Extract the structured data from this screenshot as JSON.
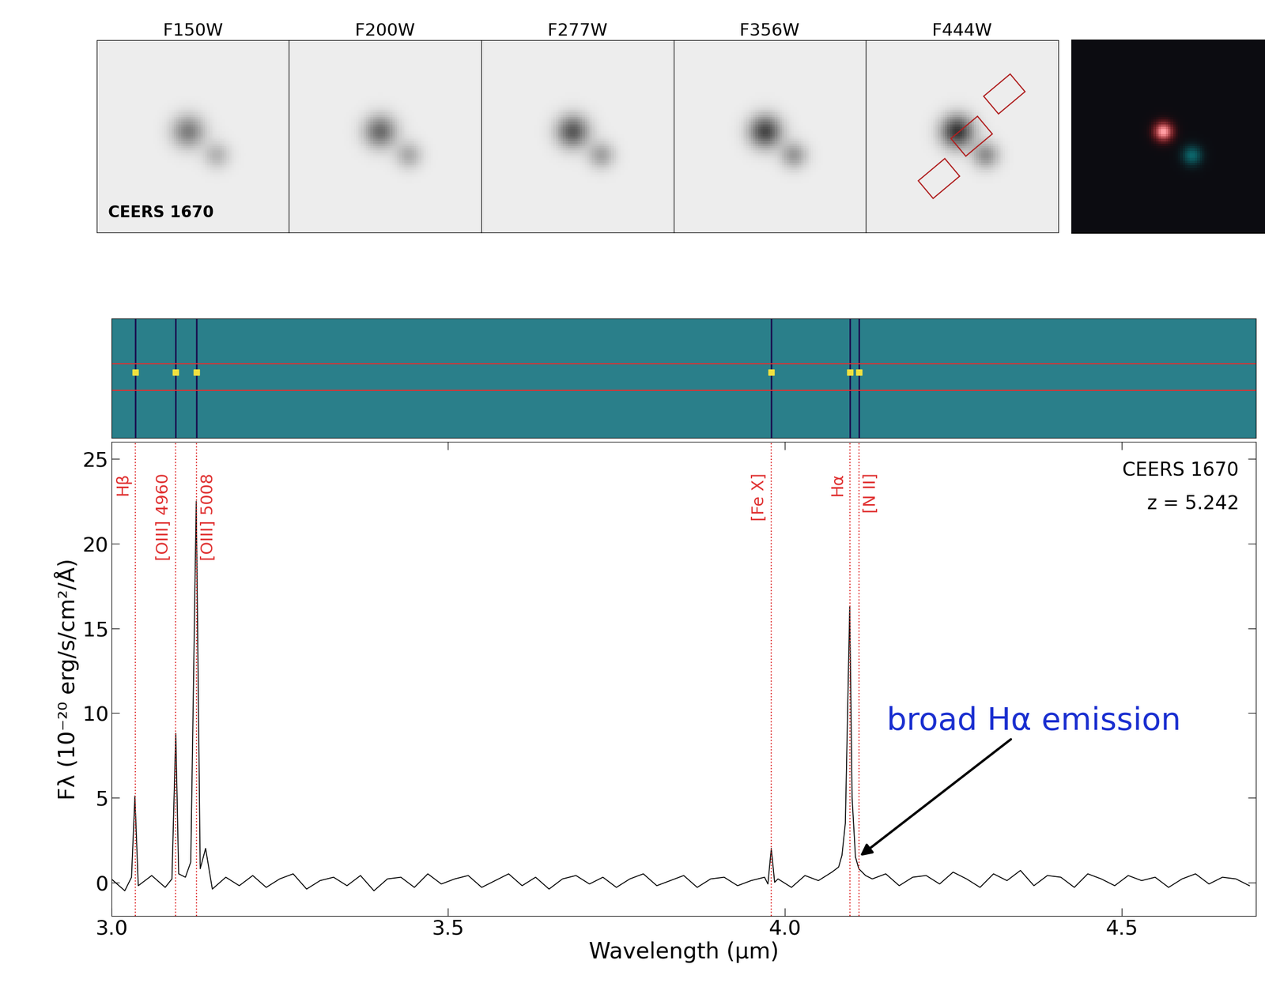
{
  "images": {
    "filters": [
      "F150W",
      "F200W",
      "F277W",
      "F356W",
      "F444W"
    ],
    "label": "CEERS 1670"
  },
  "chart_data": {
    "type": "line",
    "object": "CEERS 1670",
    "redshift_label": "z = 5.242",
    "x_label": "Wavelength (μm)",
    "y_label": "Fλ (10⁻²⁰ erg/s/cm²/Å)",
    "annotation": {
      "text": "broad Hα emission",
      "x": 4.11,
      "y": 1.5
    },
    "xlim": [
      3.0,
      4.7
    ],
    "xticks": [
      {
        "value": 3.0,
        "label": "3.0"
      },
      {
        "value": 3.5,
        "label": "3.5"
      },
      {
        "value": 4.0,
        "label": "4.0"
      },
      {
        "value": 4.5,
        "label": "4.5"
      }
    ],
    "ylim": [
      -2,
      26
    ],
    "yticks": [
      0,
      5,
      10,
      15,
      20,
      25
    ],
    "lines": [
      {
        "name": "Hβ",
        "x": 3.0353,
        "side": "left"
      },
      {
        "name": "[OIII] 4960",
        "x": 3.0957,
        "side": "left"
      },
      {
        "name": "[OIII] 5008",
        "x": 3.1261,
        "side": "right"
      },
      {
        "name": "[Fe X]",
        "x": 3.98,
        "side": "left"
      },
      {
        "name": "Hα",
        "x": 4.0965,
        "side": "left"
      },
      {
        "name": "[N II]",
        "x": 4.11,
        "side": "right"
      }
    ],
    "color": "#000000",
    "line_color": "#e03030",
    "x": [
      3.0,
      3.02,
      3.03,
      3.035,
      3.04,
      3.06,
      3.08,
      3.09,
      3.0957,
      3.1,
      3.11,
      3.118,
      3.1261,
      3.132,
      3.14,
      3.15,
      3.17,
      3.19,
      3.21,
      3.23,
      3.25,
      3.27,
      3.29,
      3.31,
      3.33,
      3.35,
      3.37,
      3.39,
      3.41,
      3.43,
      3.45,
      3.47,
      3.49,
      3.51,
      3.53,
      3.55,
      3.57,
      3.59,
      3.61,
      3.63,
      3.65,
      3.67,
      3.69,
      3.71,
      3.73,
      3.75,
      3.77,
      3.79,
      3.81,
      3.83,
      3.85,
      3.87,
      3.89,
      3.91,
      3.93,
      3.95,
      3.97,
      3.975,
      3.98,
      3.985,
      3.99,
      4.01,
      4.03,
      4.05,
      4.07,
      4.08,
      4.085,
      4.09,
      4.0965,
      4.1,
      4.105,
      4.11,
      4.12,
      4.13,
      4.15,
      4.17,
      4.19,
      4.21,
      4.23,
      4.25,
      4.27,
      4.29,
      4.31,
      4.33,
      4.35,
      4.37,
      4.39,
      4.41,
      4.43,
      4.45,
      4.47,
      4.49,
      4.51,
      4.53,
      4.55,
      4.57,
      4.59,
      4.61,
      4.63,
      4.65,
      4.67,
      4.69
    ],
    "values": [
      0.2,
      -0.5,
      0.3,
      5.1,
      -0.2,
      0.4,
      -0.3,
      0.2,
      8.8,
      0.5,
      0.3,
      1.2,
      22.5,
      0.8,
      2.0,
      -0.4,
      0.3,
      -0.2,
      0.4,
      -0.3,
      0.2,
      0.5,
      -0.4,
      0.1,
      0.3,
      -0.2,
      0.4,
      -0.5,
      0.2,
      0.3,
      -0.3,
      0.5,
      -0.1,
      0.2,
      0.4,
      -0.3,
      0.1,
      0.5,
      -0.2,
      0.3,
      -0.4,
      0.2,
      0.4,
      -0.1,
      0.3,
      -0.3,
      0.2,
      0.5,
      -0.2,
      0.1,
      0.4,
      -0.3,
      0.2,
      0.3,
      -0.2,
      0.1,
      0.3,
      -0.1,
      2.0,
      0.0,
      0.2,
      -0.3,
      0.4,
      0.1,
      0.6,
      0.9,
      1.6,
      3.5,
      16.3,
      5.0,
      1.5,
      0.8,
      0.4,
      0.2,
      0.5,
      -0.2,
      0.3,
      0.4,
      -0.1,
      0.6,
      0.2,
      -0.3,
      0.5,
      0.1,
      0.7,
      -0.2,
      0.4,
      0.3,
      -0.3,
      0.5,
      0.2,
      -0.2,
      0.4,
      0.1,
      0.3,
      -0.3,
      0.2,
      0.5,
      -0.1,
      0.3,
      0.2,
      -0.2
    ]
  }
}
